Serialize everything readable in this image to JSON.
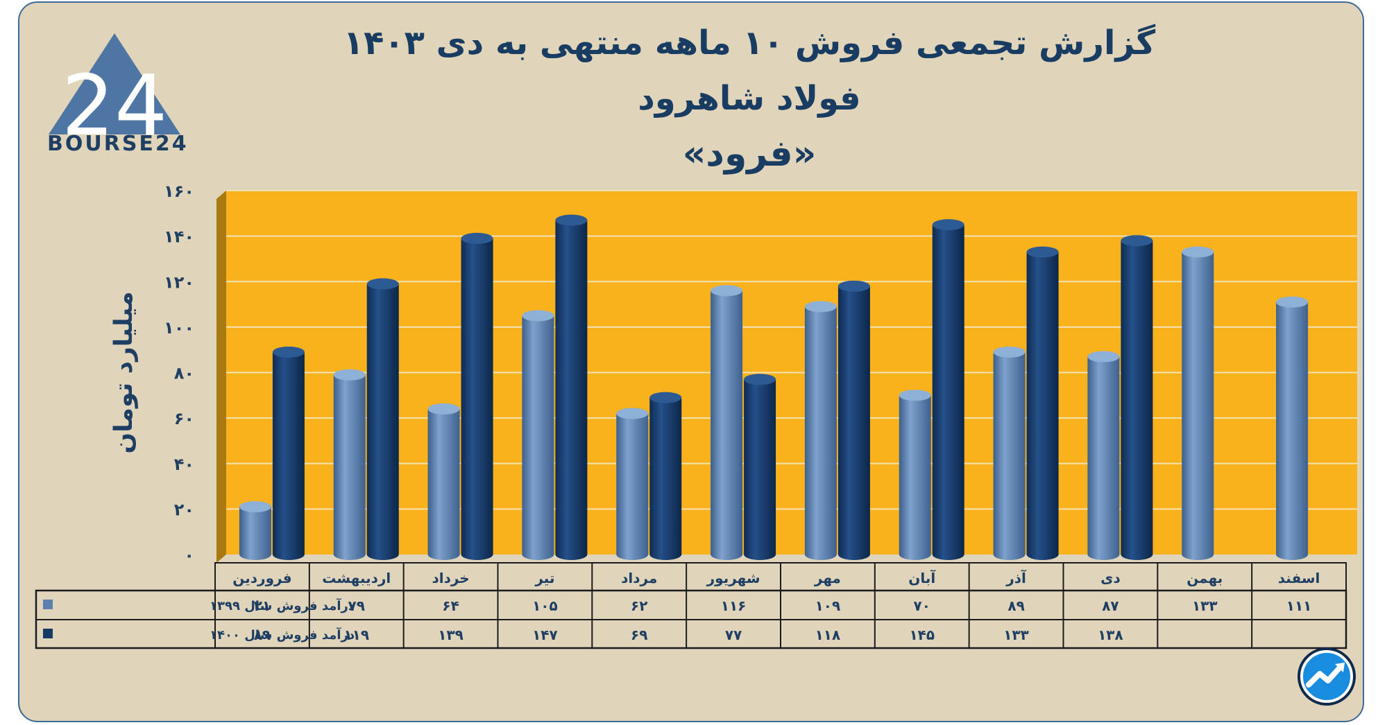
{
  "title": "گزارش تجمعی فروش ۱۰ ماهه منتهی به دی ۱۴۰۳",
  "subtitle": "فولاد شاهرود",
  "ticker": "«فرود»",
  "logo": {
    "text": "BOURSE24",
    "mark": "24"
  },
  "icons": {
    "logo": "bourse24-triangle-logo",
    "badge": "trend-arrow-badge-icon"
  },
  "colors": {
    "background": "#e0d5ba",
    "plot": "#f9b21c",
    "series1": "#5b7fae",
    "series2": "#153a66",
    "text": "#1e3f63"
  },
  "chart_data": {
    "type": "bar",
    "ylabel": "میلیارد تومان",
    "ylim": [
      0,
      160
    ],
    "yticks": [
      0,
      20,
      40,
      60,
      80,
      100,
      120,
      140,
      160
    ],
    "ytick_labels": [
      "۰",
      "۲۰",
      "۴۰",
      "۶۰",
      "۸۰",
      "۱۰۰",
      "۱۲۰",
      "۱۴۰",
      "۱۶۰"
    ],
    "grid": true,
    "categories": [
      "فروردین",
      "اردیبهشت",
      "خرداد",
      "تیر",
      "مرداد",
      "شهریور",
      "مهر",
      "آبان",
      "آذر",
      "دی",
      "بهمن",
      "اسفند"
    ],
    "series": [
      {
        "name": "درآمد فروش سال ۱۳۹۹",
        "values": [
          21,
          79,
          64,
          105,
          62,
          116,
          109,
          70,
          89,
          87,
          133,
          111
        ],
        "labels": [
          "۲۱",
          "۷۹",
          "۶۴",
          "۱۰۵",
          "۶۲",
          "۱۱۶",
          "۱۰۹",
          "۷۰",
          "۸۹",
          "۸۷",
          "۱۳۳",
          "۱۱۱"
        ]
      },
      {
        "name": "درآمد فروش سال ۱۴۰۰",
        "values": [
          89,
          119,
          139,
          147,
          69,
          77,
          118,
          145,
          133,
          138,
          null,
          null
        ],
        "labels": [
          "۸۹",
          "۱۱۹",
          "۱۳۹",
          "۱۴۷",
          "۶۹",
          "۷۷",
          "۱۱۸",
          "۱۴۵",
          "۱۳۳",
          "۱۳۸",
          "",
          ""
        ]
      }
    ]
  }
}
